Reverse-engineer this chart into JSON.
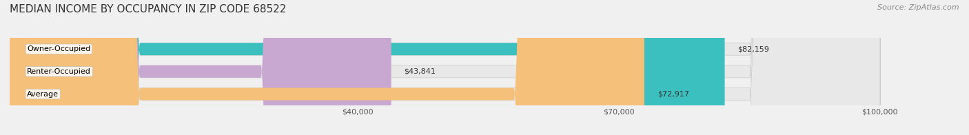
{
  "title": "MEDIAN INCOME BY OCCUPANCY IN ZIP CODE 68522",
  "source": "Source: ZipAtlas.com",
  "categories": [
    "Owner-Occupied",
    "Renter-Occupied",
    "Average"
  ],
  "values": [
    82159,
    43841,
    72917
  ],
  "bar_colors": [
    "#3bbfbf",
    "#c8a8d0",
    "#f5c07a"
  ],
  "bar_edge_colors": [
    "#3bbfbf",
    "#c8a8d0",
    "#f5c07a"
  ],
  "label_texts": [
    "$82,159",
    "$43,841",
    "$72,917"
  ],
  "xmin": 0,
  "xmax": 100000,
  "xticks": [
    40000,
    70000,
    100000
  ],
  "xtick_labels": [
    "$40,000",
    "$70,000",
    "$100,000"
  ],
  "background_color": "#f0f0f0",
  "bar_background_color": "#e8e8e8",
  "title_fontsize": 11,
  "source_fontsize": 8,
  "tick_fontsize": 8,
  "bar_label_fontsize": 8,
  "category_label_fontsize": 8
}
